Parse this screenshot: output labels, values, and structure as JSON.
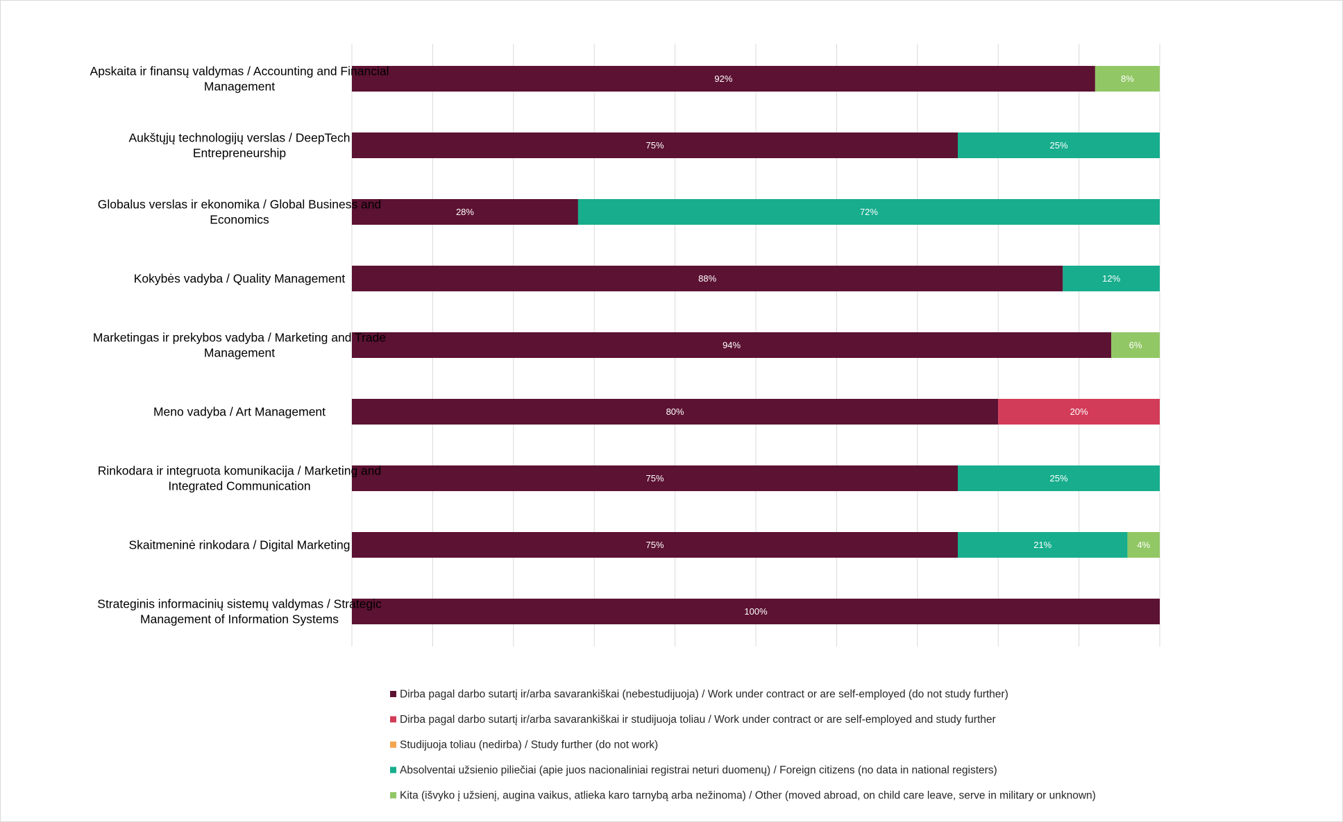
{
  "chart_data": {
    "type": "bar",
    "orientation": "horizontal",
    "stacked": true,
    "categories": [
      [
        "Apskaita ir finansų valdymas / Accounting and Financial",
        "Management"
      ],
      [
        "Aukštųjų technologijų verslas / DeepTech",
        "Entrepreneurship"
      ],
      [
        "Globalus verslas ir ekonomika / Global Business and",
        "Economics"
      ],
      [
        "Kokybės vadyba / Quality Management"
      ],
      [
        "Marketingas ir prekybos vadyba / Marketing and Trade",
        "Management"
      ],
      [
        "Meno vadyba / Art Management"
      ],
      [
        "Rinkodara ir integruota komunikacija / Marketing and",
        "Integrated Communication"
      ],
      [
        "Skaitmeninė rinkodara / Digital Marketing"
      ],
      [
        "Strateginis informacinių sistemų valdymas / Strategic",
        "Management of Information Systems"
      ]
    ],
    "series": [
      {
        "name": "Dirba pagal darbo sutartį ir/arba savarankiškai (nebestudijuoja) / Work under contract or are self-employed (do not study further)",
        "color": "#5c1232",
        "values": [
          92,
          75,
          28,
          88,
          94,
          80,
          75,
          75,
          100
        ],
        "labels": [
          "92%",
          "75%",
          "28%",
          "88%",
          "94%",
          "80%",
          "75%",
          "75%",
          "100%"
        ]
      },
      {
        "name": "Dirba pagal darbo sutartį ir/arba savarankiškai  ir studijuoja toliau / Work under contract or are self-employed and study further",
        "color": "#d23c58",
        "values": [
          0,
          0,
          0,
          0,
          0,
          20,
          0,
          0,
          0
        ],
        "labels": [
          "",
          "",
          "",
          "",
          "",
          "20%",
          "",
          "",
          ""
        ]
      },
      {
        "name": "Studijuoja toliau (nedirba) / Study further (do not work)",
        "color": "#f3a650",
        "values": [
          0,
          0,
          0,
          0,
          0,
          0,
          0,
          0,
          0
        ],
        "labels": [
          "",
          "",
          "",
          "",
          "",
          "",
          "",
          "",
          ""
        ]
      },
      {
        "name": "Absolventai užsienio piliečiai (apie juos nacionaliniai registrai neturi duomenų) / Foreign citizens (no data in national registers)",
        "color": "#17ad8d",
        "values": [
          0,
          25,
          72,
          12,
          0,
          0,
          25,
          21,
          0
        ],
        "labels": [
          "",
          "25%",
          "72%",
          "12%",
          "",
          "",
          "25%",
          "21%",
          ""
        ]
      },
      {
        "name": "Kita (išvyko į užsienį, augina vaikus, atlieka karo tarnybą arba nežinoma) / Other (moved abroad, on child care leave, serve in military or unknown)",
        "color": "#92c765",
        "values": [
          8,
          0,
          0,
          0,
          6,
          0,
          0,
          4,
          0
        ],
        "labels": [
          "8%",
          "",
          "",
          "",
          "6%",
          "",
          "",
          "4%",
          ""
        ]
      }
    ],
    "xlim": [
      0,
      100
    ],
    "grid": true,
    "legend_position": "bottom",
    "gridline_color": "#d9d9d9"
  }
}
